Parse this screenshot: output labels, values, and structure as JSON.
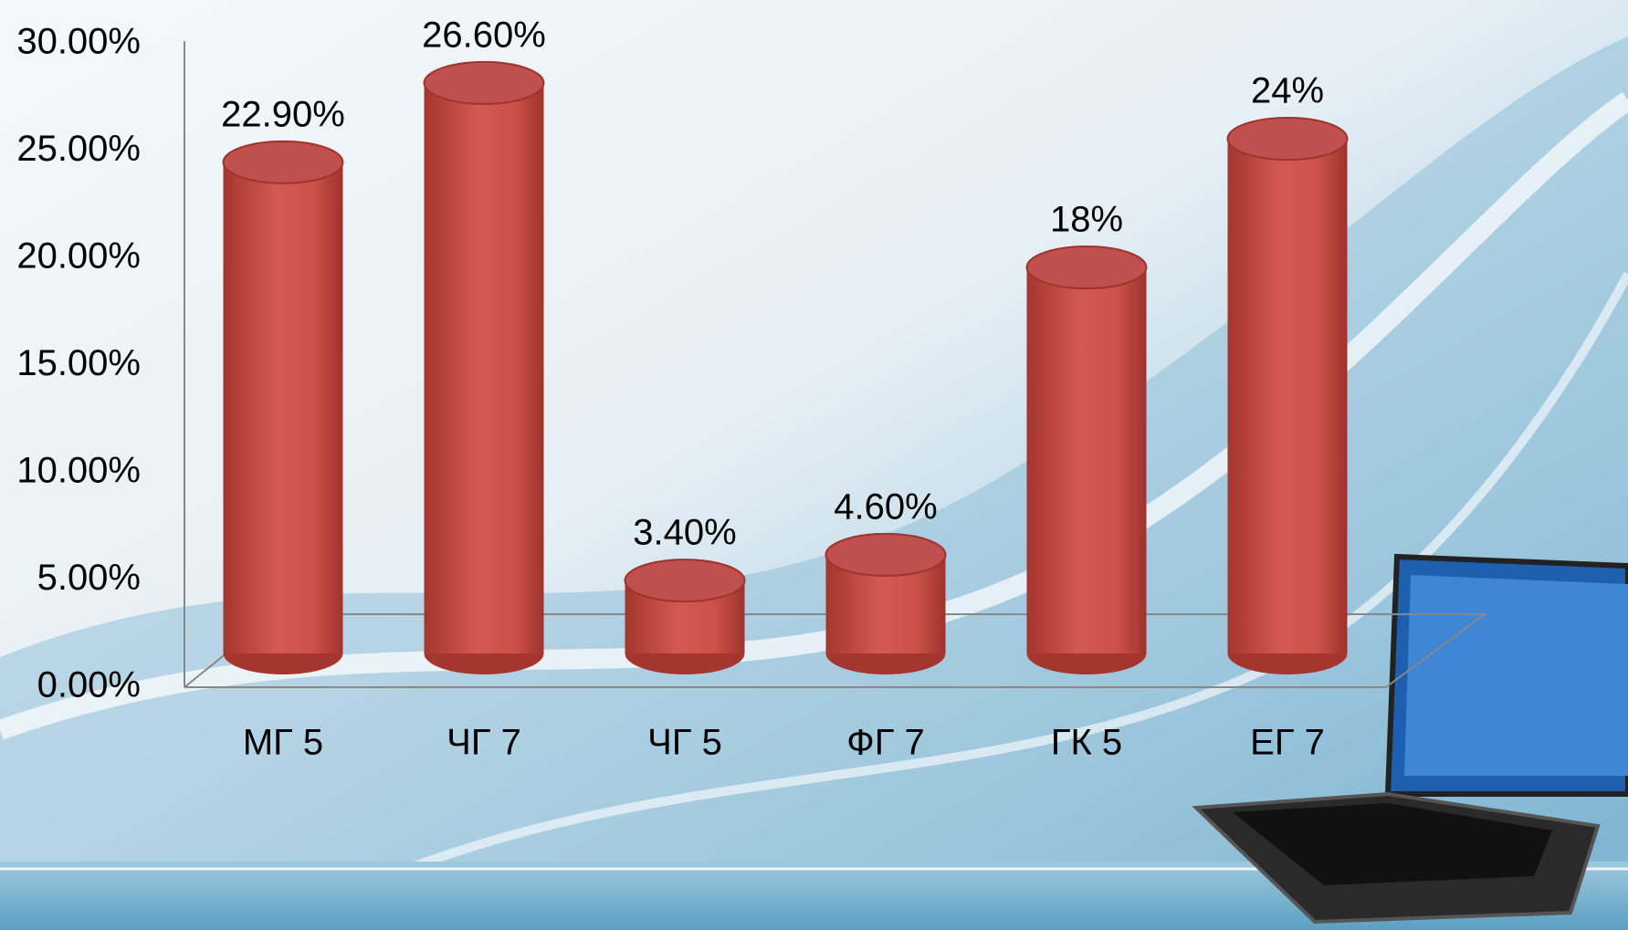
{
  "chart_data": {
    "type": "bar",
    "categories": [
      "МГ 5",
      "ЧГ 7",
      "ЧГ 5",
      "ФГ 7",
      "ГК 5",
      "ЕГ 7"
    ],
    "values": [
      22.9,
      26.6,
      3.4,
      4.6,
      18,
      24
    ],
    "value_labels": [
      "22.90%",
      "26.60%",
      "3.40%",
      "4.60%",
      "18%",
      "24%"
    ],
    "color": "#c0504d",
    "ylim": [
      0,
      30
    ],
    "yticks": [
      {
        "value": 0,
        "label": "0.00%"
      },
      {
        "value": 5,
        "label": "5.00%"
      },
      {
        "value": 10,
        "label": "10.00%"
      },
      {
        "value": 15,
        "label": "15.00%"
      },
      {
        "value": 20,
        "label": "20.00%"
      },
      {
        "value": 25,
        "label": "25.00%"
      },
      {
        "value": 30,
        "label": "30.00%"
      }
    ]
  }
}
